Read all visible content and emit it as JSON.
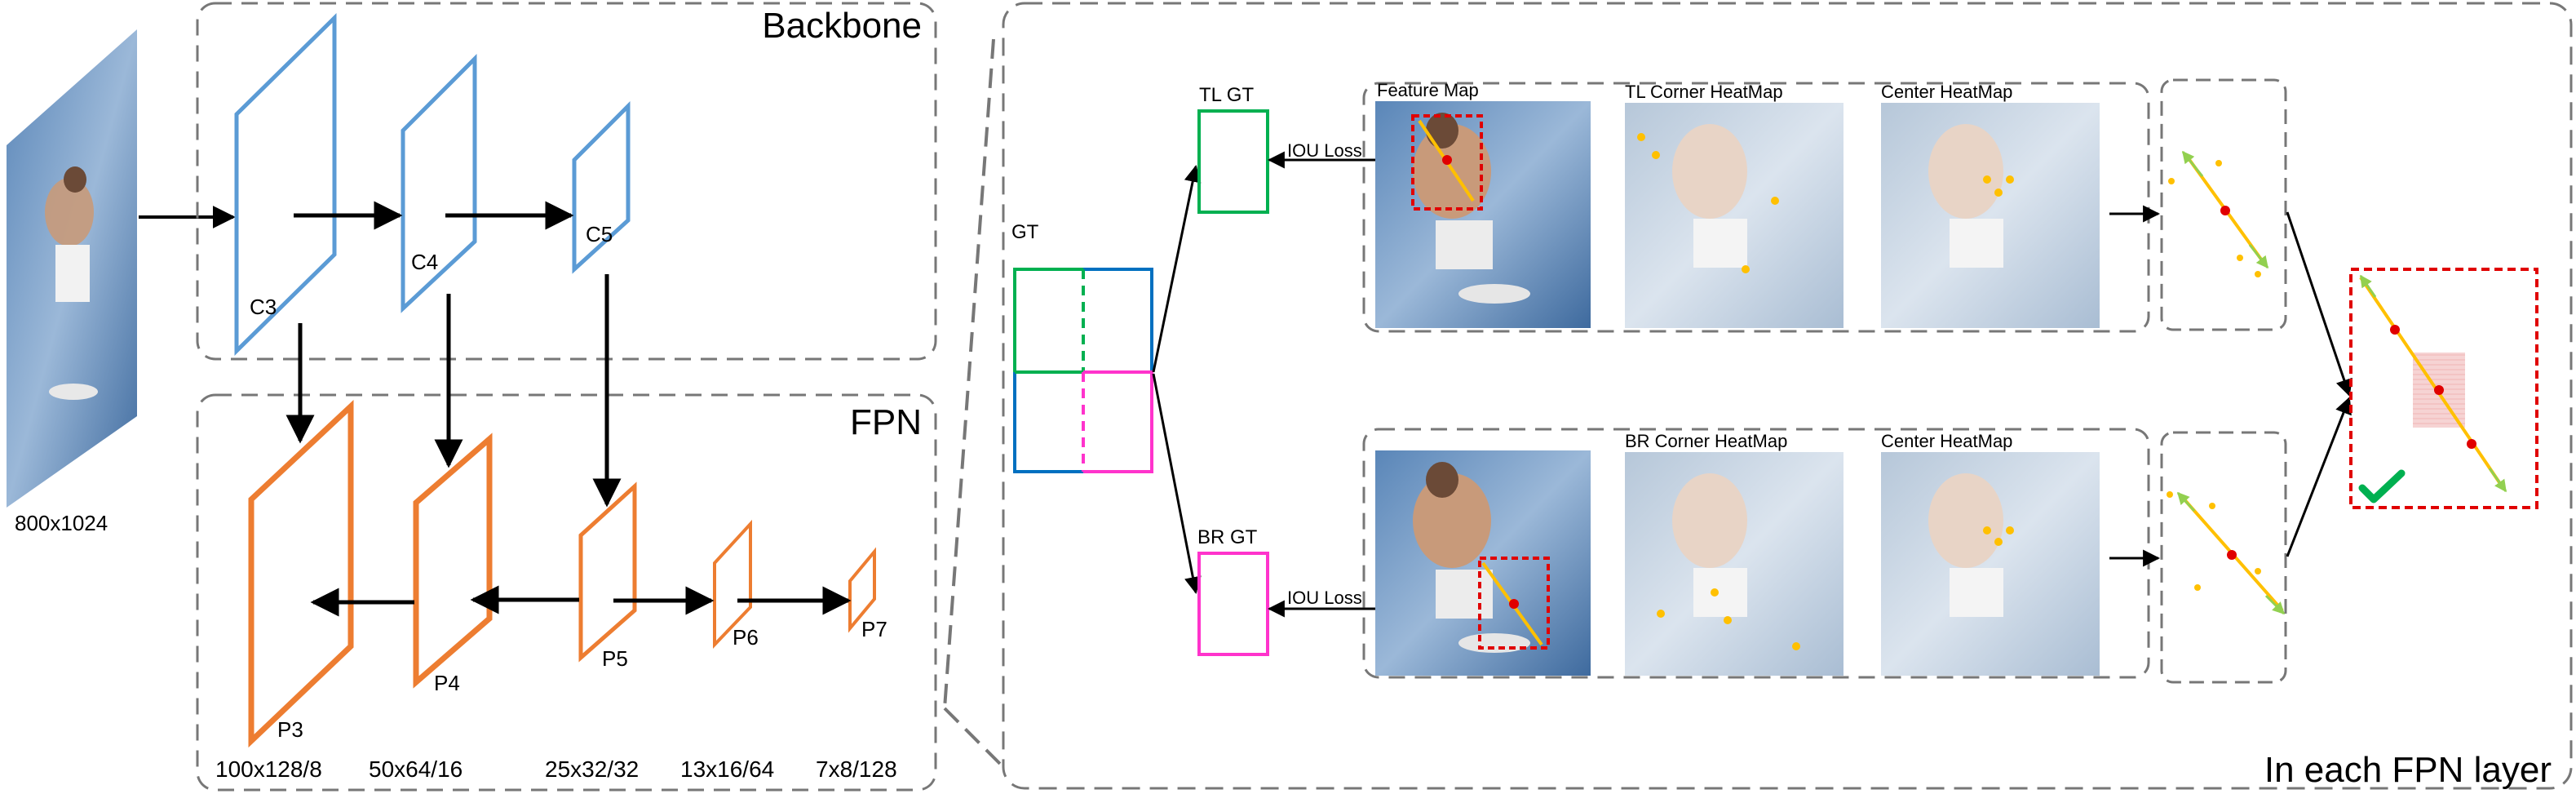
{
  "backbone": {
    "title": "Backbone",
    "levels": [
      "C3",
      "C4",
      "C5"
    ]
  },
  "fpn": {
    "title": "FPN",
    "levels": [
      "P3",
      "P4",
      "P5",
      "P6",
      "P7"
    ],
    "sizes": [
      "100x128/8",
      "50x64/16",
      "25x32/32",
      "13x16/64",
      "7x8/128"
    ]
  },
  "input": {
    "size_label": "800x1024"
  },
  "detail": {
    "title": "In each FPN layer",
    "gt_label": "GT",
    "tl_gt_label": "TL GT",
    "br_gt_label": "BR GT",
    "iou_loss_top": "IOU Loss",
    "iou_loss_bottom": "IOU Loss",
    "top_maps": [
      "Feature Map",
      "TL Corner HeatMap",
      "Center HeatMap"
    ],
    "bottom_maps": [
      "BR Corner HeatMap",
      "Center HeatMap"
    ]
  },
  "colors": {
    "backbone": "#5b9bd5",
    "fpn": "#ed7d31",
    "gt_green": "#00b050",
    "gt_blue": "#0070c0",
    "gt_magenta": "#ff33cc",
    "dashed_box": "#777777",
    "keypoint": "#ffc000",
    "center": "#e00000",
    "corner_arrow": "#92d050",
    "check": "#00b050"
  }
}
